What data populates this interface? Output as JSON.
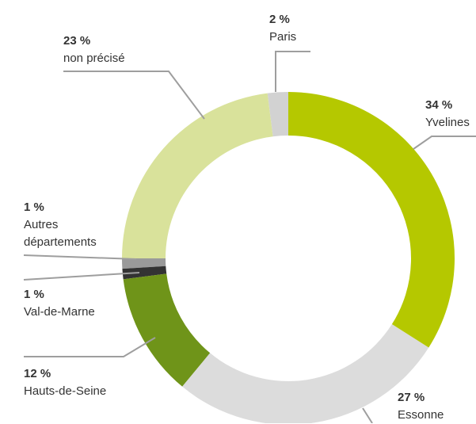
{
  "chart_data": {
    "type": "donut",
    "categories": [
      "Yvelines",
      "Essonne",
      "Hauts-de-Seine",
      "Val-de-Marne",
      "Autres départements",
      "non précisé",
      "Paris"
    ],
    "values": [
      34,
      27,
      12,
      1,
      1,
      23,
      2
    ],
    "value_labels": [
      "34 %",
      "27 %",
      "12 %",
      "1 %",
      "1 %",
      "23 %",
      "2 %"
    ],
    "colors": [
      "#b5c800",
      "#dcdcdc",
      "#6f9419",
      "#333333",
      "#9a9a9a",
      "#d9e29b",
      "#d2d2d2"
    ]
  }
}
